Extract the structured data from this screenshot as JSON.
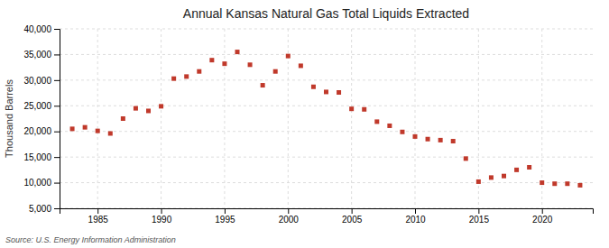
{
  "chart_data": {
    "type": "scatter",
    "title": "Annual Kansas Natural Gas Total Liquids Extracted",
    "ylabel": "Thousand Barrels",
    "annotations": [
      "Source: U.S. Energy Information Administration"
    ],
    "x": [
      1983,
      1984,
      1985,
      1986,
      1987,
      1988,
      1989,
      1990,
      1991,
      1992,
      1993,
      1994,
      1995,
      1996,
      1997,
      1998,
      1999,
      2000,
      2001,
      2002,
      2003,
      2004,
      2005,
      2006,
      2007,
      2008,
      2009,
      2010,
      2011,
      2012,
      2013,
      2014,
      2015,
      2016,
      2017,
      2018,
      2019,
      2020,
      2021,
      2022,
      2023
    ],
    "values": [
      20500,
      20800,
      20100,
      19600,
      22500,
      24500,
      24000,
      24900,
      30300,
      30700,
      31700,
      33900,
      33200,
      35500,
      33000,
      29000,
      31700,
      34700,
      32800,
      28700,
      27700,
      27600,
      24400,
      24300,
      21900,
      21100,
      19900,
      19000,
      18500,
      18300,
      18100,
      14700,
      10200,
      11000,
      11300,
      12500,
      13000,
      10000,
      9800,
      9800,
      9500
    ],
    "color": "#c0392b",
    "marker": "square",
    "xlim": [
      1982,
      2024
    ],
    "ylim": [
      5000,
      40000
    ],
    "xticks": [
      1985,
      1990,
      1995,
      2000,
      2005,
      2010,
      2015,
      2020
    ],
    "yticks": [
      {
        "value": 5000,
        "label": "5,000"
      },
      {
        "value": 10000,
        "label": "10,000"
      },
      {
        "value": 15000,
        "label": "15,000"
      },
      {
        "value": 20000,
        "label": "20,000"
      },
      {
        "value": 25000,
        "label": "25,000"
      },
      {
        "value": 30000,
        "label": "30,000"
      },
      {
        "value": 35000,
        "label": "35,000"
      },
      {
        "value": 40000,
        "label": "40,000"
      }
    ],
    "grid": true
  }
}
